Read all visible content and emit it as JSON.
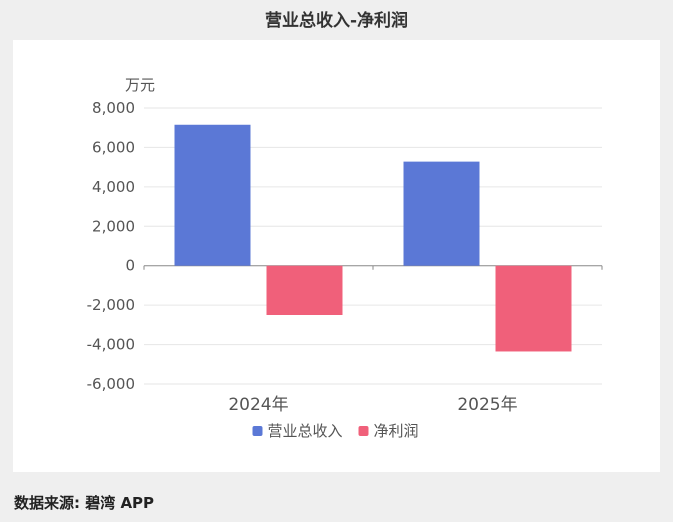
{
  "title": "营业总收入-净利润",
  "source": "数据来源: 碧湾 APP",
  "chart_data": {
    "type": "bar",
    "title": "营业总收入-净利润",
    "unit_label": "万元",
    "categories": [
      "2024年",
      "2025年"
    ],
    "series": [
      {
        "name": "营业总收入",
        "color": "#5b78d6",
        "values": [
          7150,
          5280
        ]
      },
      {
        "name": "净利润",
        "color": "#f0607a",
        "values": [
          -2500,
          -4350
        ]
      }
    ],
    "ylim": [
      -6000,
      8000
    ],
    "yticks": [
      8000,
      6000,
      4000,
      2000,
      0,
      -2000,
      -4000,
      -6000
    ],
    "ytick_labels": [
      "8,000",
      "6,000",
      "4,000",
      "2,000",
      "0",
      "-2,000",
      "-4,000",
      "-6,000"
    ],
    "grid": true,
    "legend_position": "bottom-center"
  }
}
